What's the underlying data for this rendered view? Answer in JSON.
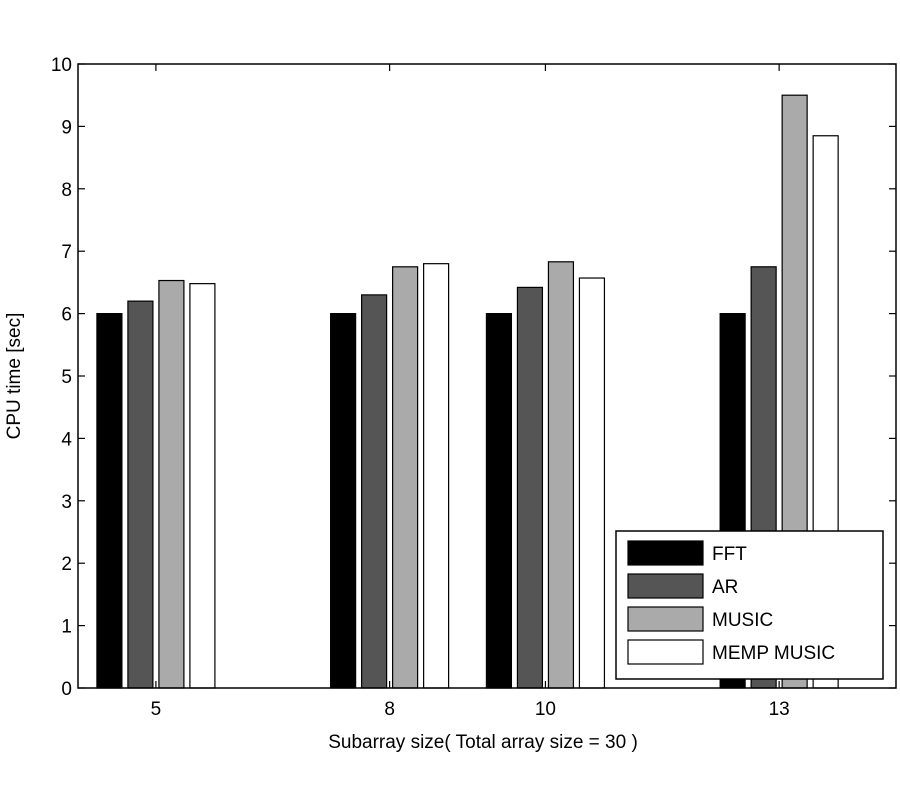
{
  "chart_data": {
    "type": "bar",
    "categories": [
      "5",
      "8",
      "10",
      "13"
    ],
    "series": [
      {
        "name": "FFT",
        "values": [
          6.0,
          6.0,
          6.0,
          6.0
        ],
        "color": "#000000"
      },
      {
        "name": "AR",
        "values": [
          6.2,
          6.3,
          6.42,
          6.75
        ],
        "color": "#555555"
      },
      {
        "name": "MUSIC",
        "values": [
          6.53,
          6.75,
          6.83,
          9.5
        ],
        "color": "#aaaaaa"
      },
      {
        "name": "MEMP MUSIC",
        "values": [
          6.48,
          6.8,
          6.57,
          8.85
        ],
        "color": "#ffffff"
      }
    ],
    "xlabel": "Subarray size( Total array size = 30 )",
    "ylabel": "CPU time [sec]",
    "ylim": [
      0,
      10
    ],
    "yticks": [
      0,
      1,
      2,
      3,
      4,
      5,
      6,
      7,
      8,
      9,
      10
    ],
    "legend_position": "bottom-right",
    "grid": false
  }
}
